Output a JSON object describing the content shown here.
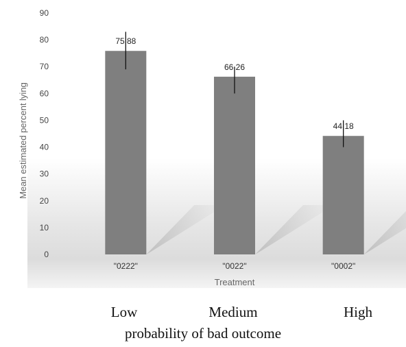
{
  "chart_data": {
    "type": "bar",
    "categories": [
      "\"0222\"",
      "\"0022\"",
      "\"0002\""
    ],
    "values": [
      75.88,
      66.26,
      44.18
    ],
    "value_labels": [
      "75,88",
      "66,26",
      "44,18"
    ],
    "error_bars": [
      [
        69,
        83
      ],
      [
        60,
        70
      ],
      [
        40,
        50
      ]
    ],
    "xlabel": "Treatment",
    "ylabel": "Mean estimated percent lying",
    "ylim": [
      0,
      90
    ],
    "yticks": [
      "0",
      "10",
      "20",
      "30",
      "40",
      "50",
      "60",
      "70",
      "80",
      "90"
    ],
    "grid": false,
    "colors": {
      "bar": "#7f7f7f",
      "error_bar": "#111111",
      "background_top": "#ffffff",
      "background_bottom": "#d8d8d8"
    }
  },
  "caption": {
    "levels": [
      "Low",
      "Medium",
      "High"
    ],
    "title": "probability of bad outcome"
  }
}
